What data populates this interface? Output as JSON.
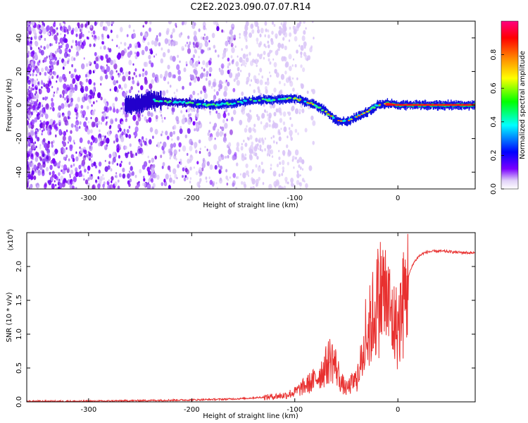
{
  "figure_title": "C2E2.2023.090.07.07.R14",
  "chart_data": [
    {
      "type": "heatmap",
      "title": "",
      "xlabel": "Height of straight line (km)",
      "ylabel": "Frequency (Hz)",
      "xlim": [
        -360,
        75
      ],
      "ylim": [
        -50,
        50
      ],
      "xticks": [
        -300,
        -200,
        -100,
        0
      ],
      "yticks": [
        -40,
        -20,
        0,
        20,
        40
      ],
      "colorbar": {
        "label": "Normalized spectral amplitude",
        "range": [
          0.0,
          1.0
        ],
        "ticks": [
          0.0,
          0.2,
          0.4,
          0.6,
          0.8
        ],
        "colors": [
          "#ffffff",
          "#c8a8f0",
          "#7a00ff",
          "#0000ff",
          "#00ffff",
          "#00ff00",
          "#ffff00",
          "#ff8800",
          "#ff0000",
          "#ff0080"
        ]
      },
      "trace": {
        "x": [
          -265,
          -250,
          -240,
          -220,
          -200,
          -180,
          -160,
          -140,
          -120,
          -100,
          -90,
          -80,
          -70,
          -60,
          -50,
          -40,
          -30,
          -20,
          -10,
          0,
          20,
          40,
          60,
          75
        ],
        "y": [
          0,
          1,
          3,
          2,
          1,
          0,
          1,
          3,
          3,
          4,
          2,
          0,
          -4,
          -9,
          -10,
          -7,
          -4,
          0,
          1,
          0,
          0,
          0,
          0,
          0
        ]
      },
      "noise_region_x": [
        -360,
        -150
      ]
    },
    {
      "type": "line",
      "title": "",
      "xlabel": "Height of straight line (km)",
      "ylabel": "SNR (10 * v/v)",
      "y_scale_note": "(x10",
      "y_scale_exp": "4",
      "y_scale_close": ")",
      "xlim": [
        -360,
        75
      ],
      "ylim": [
        0,
        2.5
      ],
      "xticks": [
        -300,
        -200,
        -100,
        0
      ],
      "yticks": [
        0.0,
        0.5,
        1.0,
        1.5,
        2.0
      ],
      "line_color": "#e8302f",
      "series": [
        {
          "x": [
            -360,
            -300,
            -250,
            -200,
            -170,
            -150,
            -130,
            -110,
            -100,
            -90,
            -80,
            -70,
            -65,
            -60,
            -55,
            -50,
            -45,
            -40,
            -35,
            -30,
            -25,
            -20,
            -15,
            -10,
            -5,
            0,
            5,
            10,
            15,
            20,
            25,
            30,
            40,
            50,
            60,
            75
          ],
          "y": [
            0.01,
            0.01,
            0.02,
            0.03,
            0.04,
            0.05,
            0.07,
            0.1,
            0.15,
            0.25,
            0.35,
            0.55,
            0.7,
            0.55,
            0.3,
            0.2,
            0.28,
            0.35,
            0.65,
            1.0,
            1.3,
            1.55,
            1.75,
            1.55,
            1.25,
            1.15,
            1.5,
            1.85,
            2.05,
            2.15,
            2.2,
            2.22,
            2.23,
            2.22,
            2.21,
            2.2
          ]
        }
      ]
    }
  ]
}
